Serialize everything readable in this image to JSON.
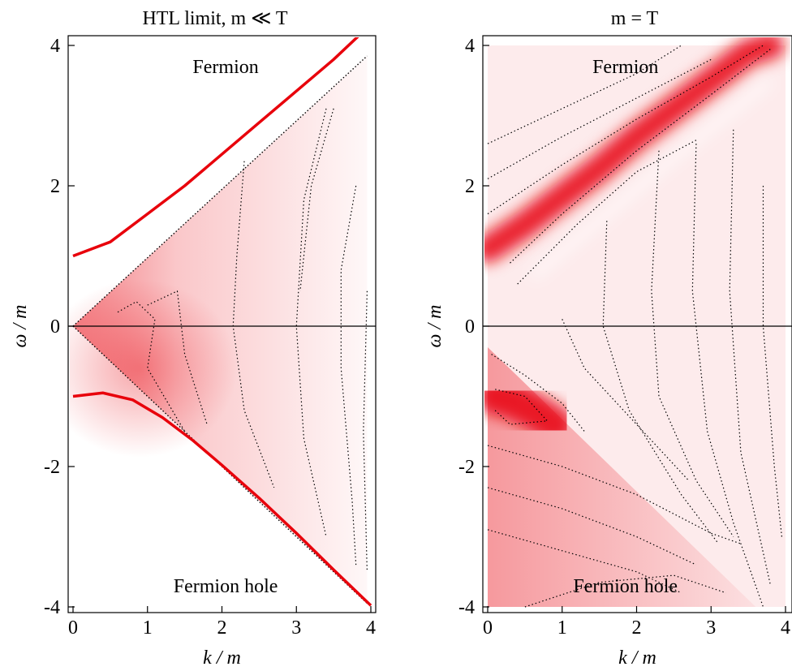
{
  "chart_data": [
    {
      "type": "heatmap",
      "title": "HTL limit,  m  ≪  T",
      "xlabel": "k / m",
      "ylabel": "ω / m",
      "xlim": [
        0,
        4
      ],
      "ylim": [
        -4,
        4
      ],
      "xticks": [
        "0",
        "1",
        "2",
        "3",
        "4"
      ],
      "yticks": [
        "-4",
        "-2",
        "0",
        "2",
        "4"
      ],
      "grid": false,
      "colormap": "white-to-red",
      "colors": {
        "peak": "#e8000b",
        "contour": "#000000",
        "zero_line": "#000000"
      },
      "annotations": [
        {
          "text": "Fermion",
          "x": 2.05,
          "y": 3.7
        },
        {
          "text": "Fermion hole",
          "x": 2.05,
          "y": -3.7
        }
      ],
      "dispersion_curves": [
        {
          "branch": "fermion",
          "points": [
            [
              0,
              1.0
            ],
            [
              0.5,
              1.2
            ],
            [
              1,
              1.6
            ],
            [
              1.5,
              2.0
            ],
            [
              2,
              2.45
            ],
            [
              2.5,
              2.9
            ],
            [
              3,
              3.35
            ],
            [
              3.5,
              3.8
            ],
            [
              3.9,
              4.2
            ]
          ]
        },
        {
          "branch": "fermion hole",
          "points": [
            [
              0,
              -1.0
            ],
            [
              0.4,
              -0.95
            ],
            [
              0.8,
              -1.05
            ],
            [
              1.2,
              -1.3
            ],
            [
              1.6,
              -1.62
            ],
            [
              2,
              -1.98
            ],
            [
              2.5,
              -2.45
            ],
            [
              3,
              -2.95
            ],
            [
              3.5,
              -3.47
            ],
            [
              4,
              -3.98
            ]
          ]
        }
      ]
    },
    {
      "type": "heatmap",
      "title": "m  =  T",
      "xlabel": "k / m",
      "ylabel": "ω / m",
      "xlim": [
        0,
        4
      ],
      "ylim": [
        -4,
        4
      ],
      "xticks": [
        "0",
        "1",
        "2",
        "3",
        "4"
      ],
      "yticks": [
        "-4",
        "-2",
        "0",
        "2",
        "4"
      ],
      "grid": false,
      "colormap": "white-to-red",
      "colors": {
        "peak": "#e8000b",
        "contour": "#000000",
        "zero_line": "#000000"
      },
      "annotations": [
        {
          "text": "Fermion",
          "x": 1.85,
          "y": 3.7
        },
        {
          "text": "Fermion hole",
          "x": 1.85,
          "y": -3.7
        }
      ],
      "ridges": [
        {
          "branch": "fermion",
          "points": [
            [
              0,
              1.1
            ],
            [
              0.5,
              1.45
            ],
            [
              1,
              1.85
            ],
            [
              1.5,
              2.25
            ],
            [
              2,
              2.7
            ],
            [
              2.5,
              3.1
            ],
            [
              3,
              3.5
            ],
            [
              3.5,
              3.9
            ],
            [
              3.8,
              4.0
            ]
          ]
        },
        {
          "branch": "fermion hole",
          "points": [
            [
              0.1,
              -1.0
            ],
            [
              0.3,
              -1.05
            ],
            [
              0.6,
              -1.2
            ],
            [
              0.9,
              -1.4
            ]
          ]
        }
      ]
    }
  ]
}
